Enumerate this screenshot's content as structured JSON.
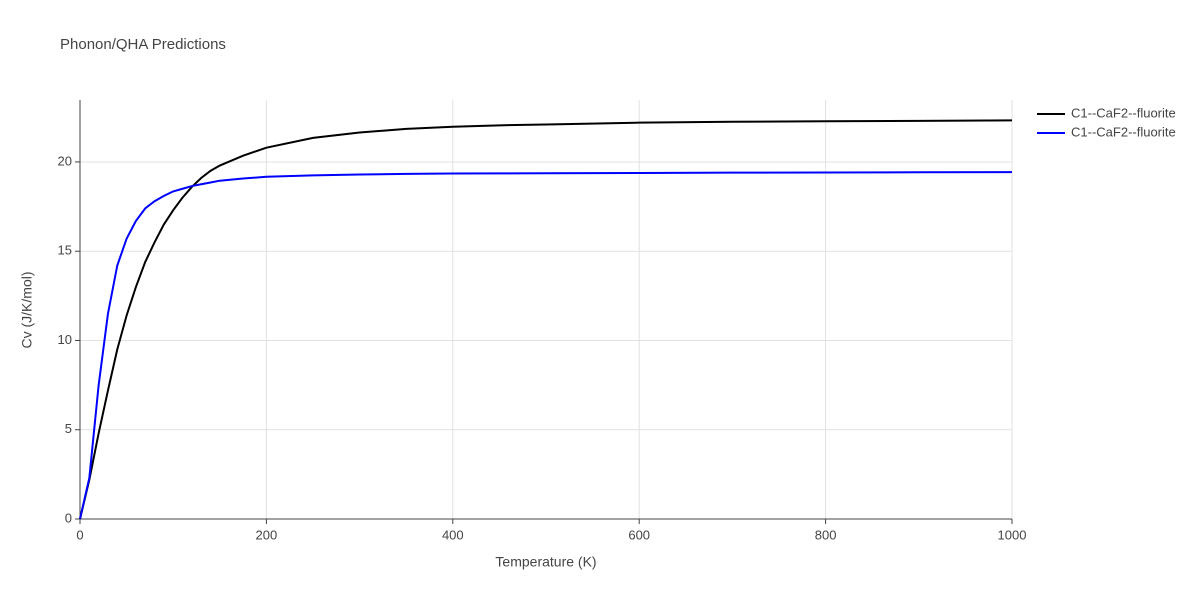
{
  "chart_data": {
    "type": "line",
    "title": "Phonon/QHA Predictions",
    "x_label": "Temperature (K)",
    "y_label": "Cv (J/K/mol)",
    "x": [
      0,
      10,
      20,
      30,
      40,
      50,
      60,
      70,
      80,
      90,
      100,
      110,
      120,
      130,
      140,
      150,
      175,
      200,
      250,
      300,
      350,
      400,
      450,
      500,
      600,
      700,
      800,
      900,
      1000
    ],
    "series": [
      {
        "name": "C1--CaF2--fluorite",
        "color": "#000000",
        "values": [
          0,
          2.2,
          4.8,
          7.2,
          9.5,
          11.4,
          13.0,
          14.4,
          15.5,
          16.5,
          17.3,
          18.0,
          18.6,
          19.1,
          19.5,
          19.8,
          20.35,
          20.8,
          21.35,
          21.65,
          21.85,
          21.97,
          22.05,
          22.1,
          22.2,
          22.25,
          22.28,
          22.3,
          22.33
        ]
      },
      {
        "name": "C1--CaF2--fluorite",
        "color": "#0000ff",
        "values": [
          0,
          2.3,
          7.5,
          11.5,
          14.2,
          15.7,
          16.7,
          17.4,
          17.8,
          18.1,
          18.35,
          18.5,
          18.65,
          18.75,
          18.85,
          18.95,
          19.07,
          19.17,
          19.25,
          19.3,
          19.33,
          19.35,
          19.36,
          19.37,
          19.38,
          19.4,
          19.41,
          19.42,
          19.43
        ]
      }
    ],
    "xlim": [
      0,
      1000
    ],
    "xticks": [
      0,
      200,
      400,
      600,
      800,
      1000
    ],
    "ylim": [
      0,
      23.47
    ],
    "yticks": [
      0,
      5,
      10,
      15,
      20
    ],
    "grid": true
  }
}
